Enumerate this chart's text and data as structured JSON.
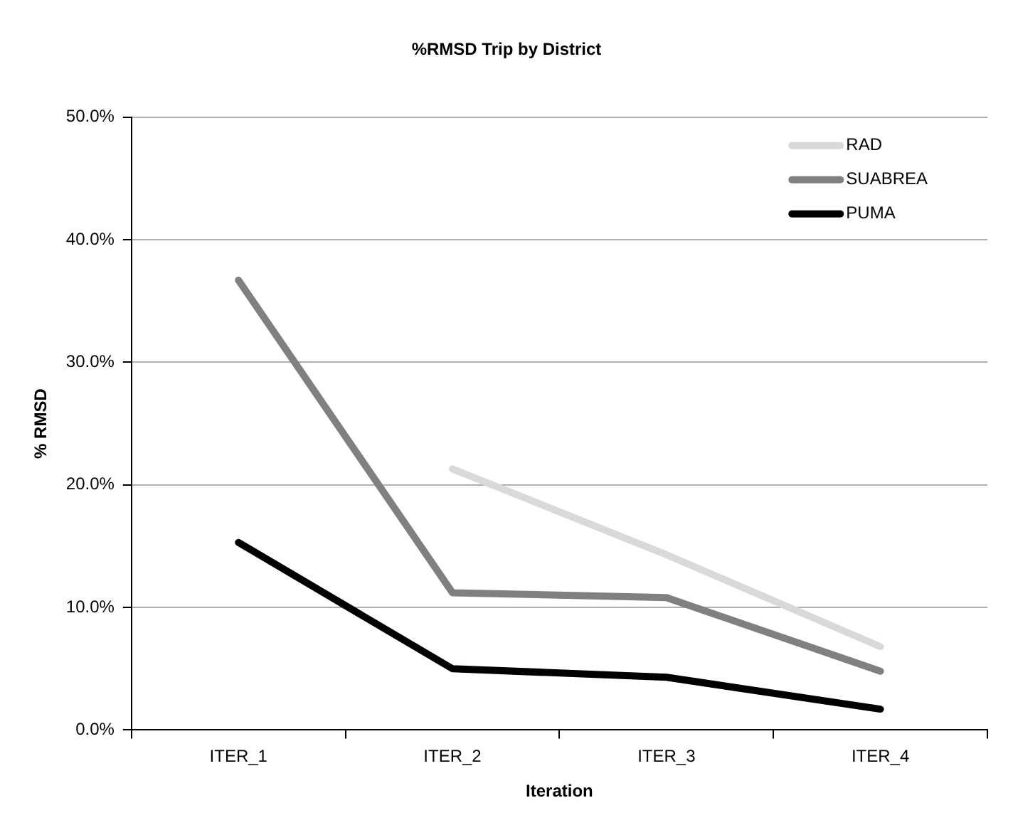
{
  "chart_data": {
    "type": "line",
    "title": "%RMSD Trip by District",
    "xlabel": "Iteration",
    "ylabel": "% RMSD",
    "categories": [
      "ITER_1",
      "ITER_2",
      "ITER_3",
      "ITER_4"
    ],
    "series": [
      {
        "name": "RAD",
        "color": "#d9d9d9",
        "values": [
          null,
          21.3,
          14.3,
          6.8
        ]
      },
      {
        "name": "SUABREA",
        "color": "#808080",
        "values": [
          36.7,
          11.2,
          10.8,
          4.8
        ]
      },
      {
        "name": "PUMA",
        "color": "#000000",
        "values": [
          15.3,
          5.0,
          4.3,
          1.7
        ]
      }
    ],
    "ylim": [
      0,
      50
    ],
    "yticks": [
      {
        "value": 0,
        "label": "0.0%"
      },
      {
        "value": 10,
        "label": "10.0%"
      },
      {
        "value": 20,
        "label": "20.0%"
      },
      {
        "value": 30,
        "label": "30.0%"
      },
      {
        "value": 40,
        "label": "40.0%"
      },
      {
        "value": 50,
        "label": "50.0%"
      }
    ],
    "grid": "y",
    "legend": "top right",
    "marker": "none",
    "line_style": "solid"
  }
}
